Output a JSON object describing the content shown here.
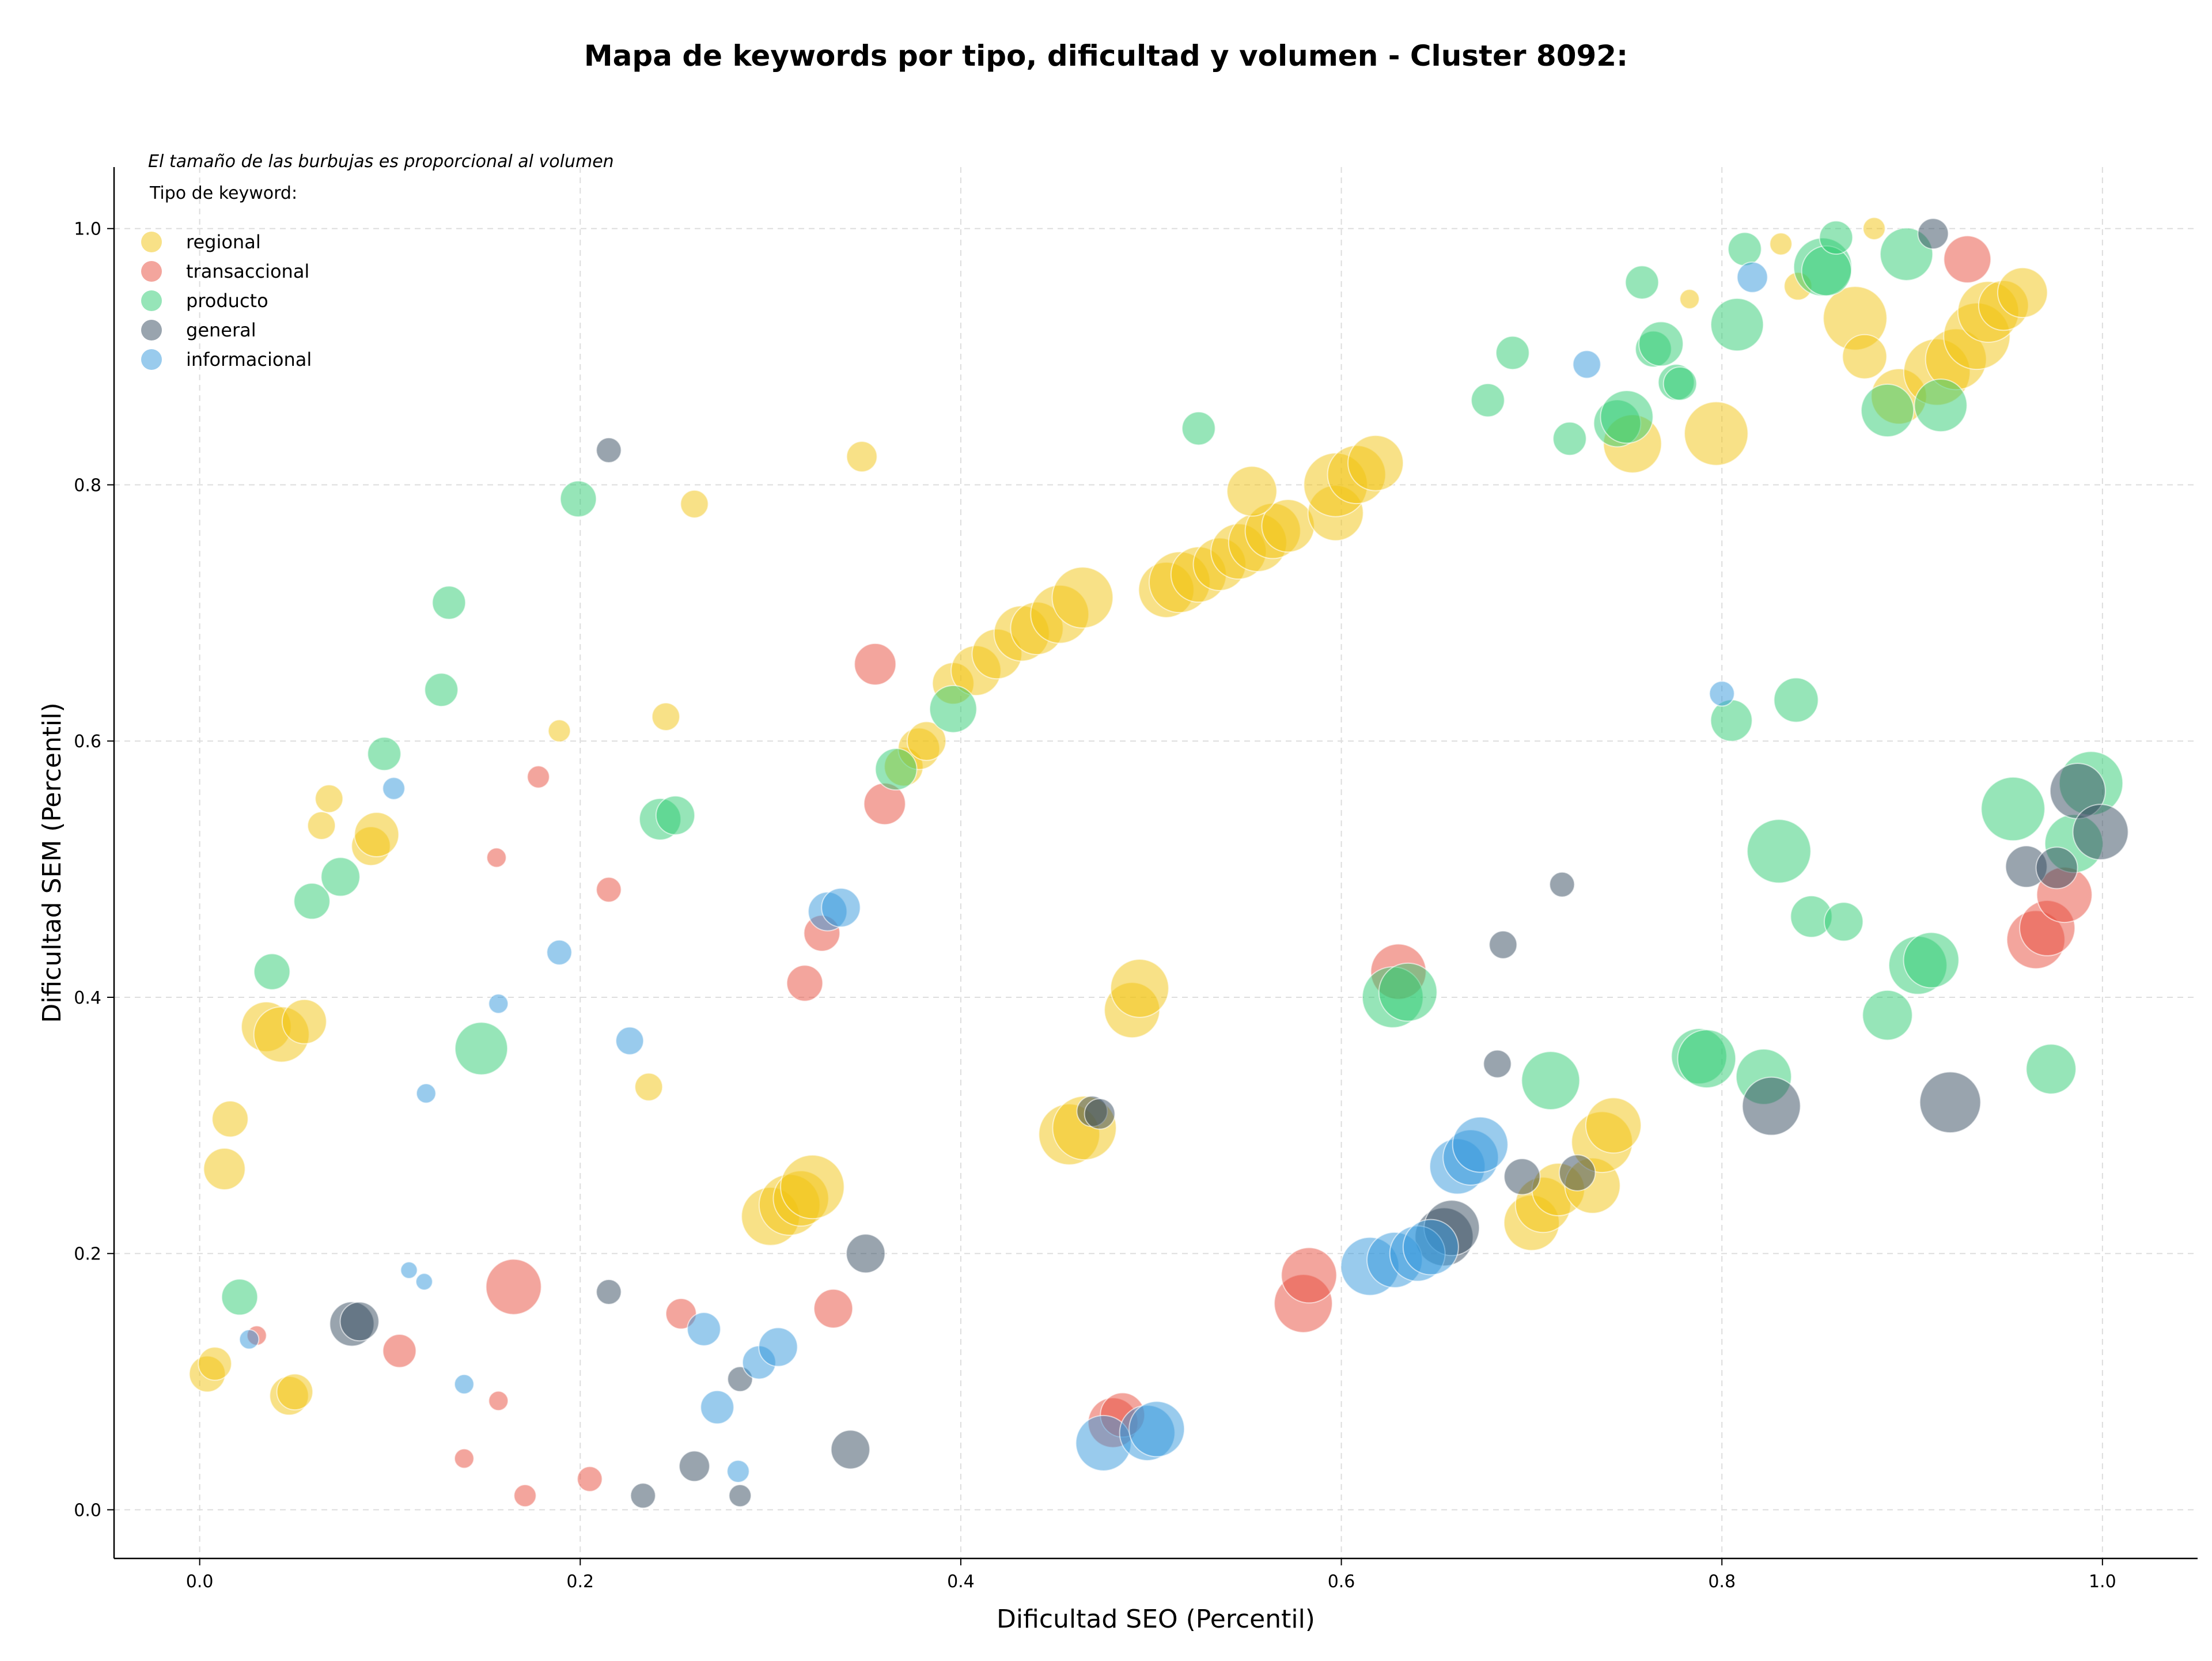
{
  "chart_data": {
    "type": "scatter",
    "title": "Mapa de keywords por tipo, dificultad y volumen - Cluster 8092:",
    "xlabel": "Dificultad SEO (Percentil)",
    "ylabel": "Dificultad SEM (Percentil)",
    "xlim": [
      -0.045,
      1.05
    ],
    "ylim": [
      -0.038,
      1.048
    ],
    "xticks": [
      0.0,
      0.2,
      0.4,
      0.6,
      0.8,
      1.0
    ],
    "yticks": [
      0.0,
      0.2,
      0.4,
      0.6,
      0.8,
      1.0
    ],
    "xtick_labels": [
      "0.0",
      "0.2",
      "0.4",
      "0.6",
      "0.8",
      "1.0"
    ],
    "ytick_labels": [
      "0.0",
      "0.2",
      "0.4",
      "0.6",
      "0.8",
      "1.0"
    ],
    "grid": true,
    "annotation": "El tamaño de las burbujas es proporcional al volumen",
    "legend_title": "Tipo de keyword:",
    "legend_position": "top-left",
    "series": [
      {
        "name": "regional",
        "color": "#f1c40f",
        "points": [
          [
            0.004,
            0.106,
            1.3
          ],
          [
            0.008,
            0.114,
            1.2
          ],
          [
            0.013,
            0.266,
            1.5
          ],
          [
            0.016,
            0.305,
            1.3
          ],
          [
            0.035,
            0.377,
            1.8
          ],
          [
            0.043,
            0.371,
            2.0
          ],
          [
            0.047,
            0.089,
            1.4
          ],
          [
            0.05,
            0.092,
            1.3
          ],
          [
            0.055,
            0.381,
            1.6
          ],
          [
            0.064,
            0.534,
            1.0
          ],
          [
            0.068,
            0.555,
            1.0
          ],
          [
            0.09,
            0.518,
            1.4
          ],
          [
            0.093,
            0.527,
            1.6
          ],
          [
            0.189,
            0.608,
            0.8
          ],
          [
            0.236,
            0.33,
            1.0
          ],
          [
            0.245,
            0.619,
            1.0
          ],
          [
            0.26,
            0.785,
            1.0
          ],
          [
            0.348,
            0.822,
            1.1
          ],
          [
            0.3,
            0.229,
            2.1
          ],
          [
            0.31,
            0.238,
            2.2
          ],
          [
            0.316,
            0.243,
            2.0
          ],
          [
            0.322,
            0.252,
            2.3
          ],
          [
            0.457,
            0.293,
            2.2
          ],
          [
            0.465,
            0.298,
            2.3
          ],
          [
            0.49,
            0.39,
            2.0
          ],
          [
            0.494,
            0.407,
            2.1
          ],
          [
            0.37,
            0.58,
            1.4
          ],
          [
            0.378,
            0.594,
            1.5
          ],
          [
            0.382,
            0.6,
            1.4
          ],
          [
            0.396,
            0.645,
            1.5
          ],
          [
            0.408,
            0.655,
            1.8
          ],
          [
            0.419,
            0.668,
            1.8
          ],
          [
            0.432,
            0.684,
            2.0
          ],
          [
            0.44,
            0.688,
            1.9
          ],
          [
            0.452,
            0.699,
            2.1
          ],
          [
            0.464,
            0.712,
            2.2
          ],
          [
            0.508,
            0.718,
            2.0
          ],
          [
            0.515,
            0.724,
            2.2
          ],
          [
            0.525,
            0.73,
            2.0
          ],
          [
            0.536,
            0.738,
            1.9
          ],
          [
            0.546,
            0.748,
            2.0
          ],
          [
            0.556,
            0.755,
            2.1
          ],
          [
            0.564,
            0.764,
            2.0
          ],
          [
            0.572,
            0.768,
            1.9
          ],
          [
            0.553,
            0.795,
            1.8
          ],
          [
            0.597,
            0.778,
            2.0
          ],
          [
            0.597,
            0.8,
            2.3
          ],
          [
            0.608,
            0.808,
            2.1
          ],
          [
            0.618,
            0.817,
            2.0
          ],
          [
            0.7,
            0.224,
            2.0
          ],
          [
            0.706,
            0.238,
            2.0
          ],
          [
            0.714,
            0.25,
            1.9
          ],
          [
            0.732,
            0.253,
            2.0
          ],
          [
            0.737,
            0.287,
            2.2
          ],
          [
            0.743,
            0.3,
            2.0
          ],
          [
            0.753,
            0.832,
            2.1
          ],
          [
            0.797,
            0.84,
            2.3
          ],
          [
            0.783,
            0.945,
            0.7
          ],
          [
            0.831,
            0.988,
            0.8
          ],
          [
            0.84,
            0.955,
            1.0
          ],
          [
            0.87,
            0.93,
            2.3
          ],
          [
            0.875,
            0.9,
            1.6
          ],
          [
            0.893,
            0.869,
            2.0
          ],
          [
            0.913,
            0.888,
            2.4
          ],
          [
            0.923,
            0.898,
            2.2
          ],
          [
            0.934,
            0.916,
            2.4
          ],
          [
            0.94,
            0.935,
            2.2
          ],
          [
            0.948,
            0.94,
            1.8
          ],
          [
            0.958,
            0.95,
            1.8
          ],
          [
            0.88,
            1.0,
            0.8
          ]
        ]
      },
      {
        "name": "transaccional",
        "color": "#e74c3c",
        "points": [
          [
            0.03,
            0.136,
            0.7
          ],
          [
            0.105,
            0.124,
            1.2
          ],
          [
            0.139,
            0.04,
            0.7
          ],
          [
            0.156,
            0.509,
            0.7
          ],
          [
            0.157,
            0.085,
            0.7
          ],
          [
            0.165,
            0.174,
            2.0
          ],
          [
            0.171,
            0.011,
            0.8
          ],
          [
            0.178,
            0.572,
            0.8
          ],
          [
            0.205,
            0.024,
            0.9
          ],
          [
            0.215,
            0.484,
            0.9
          ],
          [
            0.253,
            0.153,
            1.1
          ],
          [
            0.318,
            0.411,
            1.3
          ],
          [
            0.327,
            0.45,
            1.3
          ],
          [
            0.333,
            0.157,
            1.4
          ],
          [
            0.355,
            0.66,
            1.5
          ],
          [
            0.36,
            0.551,
            1.5
          ],
          [
            0.48,
            0.068,
            1.8
          ],
          [
            0.485,
            0.074,
            1.6
          ],
          [
            0.58,
            0.161,
            2.1
          ],
          [
            0.583,
            0.183,
            2.0
          ],
          [
            0.63,
            0.42,
            2.0
          ],
          [
            0.929,
            0.976,
            1.7
          ],
          [
            0.965,
            0.445,
            2.1
          ],
          [
            0.971,
            0.454,
            2.0
          ],
          [
            0.98,
            0.48,
            2.0
          ]
        ]
      },
      {
        "name": "producto",
        "color": "#2ecc71",
        "points": [
          [
            0.021,
            0.166,
            1.3
          ],
          [
            0.038,
            0.42,
            1.3
          ],
          [
            0.059,
            0.475,
            1.3
          ],
          [
            0.074,
            0.494,
            1.4
          ],
          [
            0.097,
            0.59,
            1.2
          ],
          [
            0.127,
            0.64,
            1.2
          ],
          [
            0.131,
            0.708,
            1.2
          ],
          [
            0.148,
            0.36,
            1.9
          ],
          [
            0.199,
            0.789,
            1.3
          ],
          [
            0.242,
            0.539,
            1.5
          ],
          [
            0.25,
            0.542,
            1.4
          ],
          [
            0.366,
            0.578,
            1.5
          ],
          [
            0.396,
            0.625,
            1.7
          ],
          [
            0.525,
            0.844,
            1.2
          ],
          [
            0.627,
            0.4,
            2.2
          ],
          [
            0.635,
            0.404,
            2.1
          ],
          [
            0.677,
            0.866,
            1.2
          ],
          [
            0.69,
            0.903,
            1.2
          ],
          [
            0.71,
            0.335,
            2.1
          ],
          [
            0.72,
            0.836,
            1.2
          ],
          [
            0.745,
            0.848,
            1.7
          ],
          [
            0.75,
            0.853,
            1.9
          ],
          [
            0.758,
            0.958,
            1.2
          ],
          [
            0.764,
            0.906,
            1.3
          ],
          [
            0.768,
            0.91,
            1.6
          ],
          [
            0.776,
            0.88,
            1.3
          ],
          [
            0.778,
            0.879,
            1.2
          ],
          [
            0.788,
            0.354,
            2.0
          ],
          [
            0.792,
            0.352,
            2.1
          ],
          [
            0.805,
            0.616,
            1.5
          ],
          [
            0.808,
            0.925,
            1.9
          ],
          [
            0.812,
            0.984,
            1.2
          ],
          [
            0.822,
            0.338,
            2.0
          ],
          [
            0.83,
            0.514,
            2.3
          ],
          [
            0.839,
            0.632,
            1.6
          ],
          [
            0.847,
            0.463,
            1.5
          ],
          [
            0.853,
            0.97,
            2.1
          ],
          [
            0.855,
            0.967,
            1.8
          ],
          [
            0.86,
            0.993,
            1.2
          ],
          [
            0.864,
            0.459,
            1.4
          ],
          [
            0.887,
            0.858,
            1.9
          ],
          [
            0.887,
            0.386,
            1.8
          ],
          [
            0.897,
            0.98,
            1.9
          ],
          [
            0.903,
            0.425,
            2.1
          ],
          [
            0.91,
            0.429,
            2.0
          ],
          [
            0.915,
            0.862,
            1.9
          ],
          [
            0.953,
            0.547,
            2.3
          ],
          [
            0.973,
            0.344,
            1.8
          ],
          [
            0.985,
            0.52,
            2.1
          ],
          [
            0.994,
            0.567,
            2.3
          ]
        ]
      },
      {
        "name": "general",
        "color": "#34495e",
        "points": [
          [
            0.08,
            0.145,
            1.6
          ],
          [
            0.084,
            0.147,
            1.4
          ],
          [
            0.215,
            0.827,
            0.9
          ],
          [
            0.215,
            0.17,
            0.9
          ],
          [
            0.233,
            0.011,
            0.9
          ],
          [
            0.26,
            0.034,
            1.1
          ],
          [
            0.284,
            0.102,
            0.9
          ],
          [
            0.284,
            0.011,
            0.8
          ],
          [
            0.342,
            0.047,
            1.4
          ],
          [
            0.35,
            0.2,
            1.4
          ],
          [
            0.469,
            0.311,
            1.1
          ],
          [
            0.473,
            0.309,
            1.1
          ],
          [
            0.654,
            0.213,
            2.1
          ],
          [
            0.658,
            0.22,
            2.0
          ],
          [
            0.685,
            0.441,
            1.0
          ],
          [
            0.682,
            0.348,
            1.0
          ],
          [
            0.695,
            0.26,
            1.3
          ],
          [
            0.716,
            0.488,
            0.9
          ],
          [
            0.724,
            0.263,
            1.3
          ],
          [
            0.826,
            0.315,
            2.1
          ],
          [
            0.911,
            0.996,
            1.1
          ],
          [
            0.92,
            0.318,
            2.2
          ],
          [
            0.96,
            0.502,
            1.5
          ],
          [
            0.976,
            0.501,
            1.5
          ],
          [
            0.987,
            0.561,
            2.0
          ],
          [
            0.999,
            0.529,
            2.0
          ]
        ]
      },
      {
        "name": "informacional",
        "color": "#3498db",
        "points": [
          [
            0.026,
            0.133,
            0.7
          ],
          [
            0.102,
            0.563,
            0.8
          ],
          [
            0.11,
            0.187,
            0.6
          ],
          [
            0.118,
            0.178,
            0.6
          ],
          [
            0.119,
            0.325,
            0.7
          ],
          [
            0.139,
            0.098,
            0.7
          ],
          [
            0.157,
            0.395,
            0.7
          ],
          [
            0.189,
            0.435,
            0.9
          ],
          [
            0.226,
            0.366,
            1.0
          ],
          [
            0.265,
            0.141,
            1.2
          ],
          [
            0.272,
            0.08,
            1.2
          ],
          [
            0.283,
            0.03,
            0.8
          ],
          [
            0.294,
            0.115,
            1.2
          ],
          [
            0.304,
            0.127,
            1.4
          ],
          [
            0.33,
            0.467,
            1.4
          ],
          [
            0.337,
            0.47,
            1.4
          ],
          [
            0.475,
            0.052,
            2.0
          ],
          [
            0.498,
            0.06,
            2.0
          ],
          [
            0.503,
            0.063,
            2.0
          ],
          [
            0.615,
            0.19,
            2.1
          ],
          [
            0.628,
            0.195,
            2.0
          ],
          [
            0.64,
            0.2,
            2.0
          ],
          [
            0.647,
            0.205,
            2.0
          ],
          [
            0.661,
            0.268,
            2.0
          ],
          [
            0.668,
            0.275,
            2.0
          ],
          [
            0.673,
            0.285,
            2.0
          ],
          [
            0.729,
            0.894,
            1.0
          ],
          [
            0.8,
            0.637,
            0.9
          ],
          [
            0.816,
            0.962,
            1.1
          ]
        ]
      }
    ]
  }
}
